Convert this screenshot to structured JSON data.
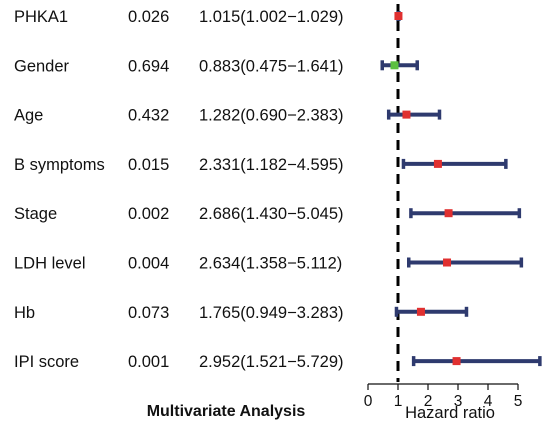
{
  "chart_data": {
    "type": "forest",
    "title": "Multivariate Analysis",
    "xlabel": "Hazard ratio",
    "xlim": [
      0,
      5.9
    ],
    "xticks": [
      0,
      1,
      2,
      3,
      4,
      5
    ],
    "reference_line": 1,
    "rows": [
      {
        "label": "PHKA1",
        "p": "0.026",
        "hr_text": "1.015(1.002−1.029)",
        "hr": 1.015,
        "low": 1.002,
        "high": 1.029,
        "marker_color": "#e03030"
      },
      {
        "label": "Gender",
        "p": "0.694",
        "hr_text": "0.883(0.475−1.641)",
        "hr": 0.883,
        "low": 0.475,
        "high": 1.641,
        "marker_color": "#5cc040"
      },
      {
        "label": "Age",
        "p": "0.432",
        "hr_text": "1.282(0.690−2.383)",
        "hr": 1.282,
        "low": 0.69,
        "high": 2.383,
        "marker_color": "#e03030"
      },
      {
        "label": "B symptoms",
        "p": "0.015",
        "hr_text": "2.331(1.182−4.595)",
        "hr": 2.331,
        "low": 1.182,
        "high": 4.595,
        "marker_color": "#e03030"
      },
      {
        "label": "Stage",
        "p": "0.002",
        "hr_text": "2.686(1.430−5.045)",
        "hr": 2.686,
        "low": 1.43,
        "high": 5.045,
        "marker_color": "#e03030"
      },
      {
        "label": "LDH level",
        "p": "0.004",
        "hr_text": "2.634(1.358−5.112)",
        "hr": 2.634,
        "low": 1.358,
        "high": 5.112,
        "marker_color": "#e03030"
      },
      {
        "label": "Hb",
        "p": "0.073",
        "hr_text": "1.765(0.949−3.283)",
        "hr": 1.765,
        "low": 0.949,
        "high": 3.283,
        "marker_color": "#e03030"
      },
      {
        "label": "IPI score",
        "p": "0.001",
        "hr_text": "2.952(1.521−5.729)",
        "hr": 2.952,
        "low": 1.521,
        "high": 5.729,
        "marker_color": "#e03030"
      }
    ],
    "ci_color": "#2e3a6e",
    "reference_line_color": "#000000"
  }
}
